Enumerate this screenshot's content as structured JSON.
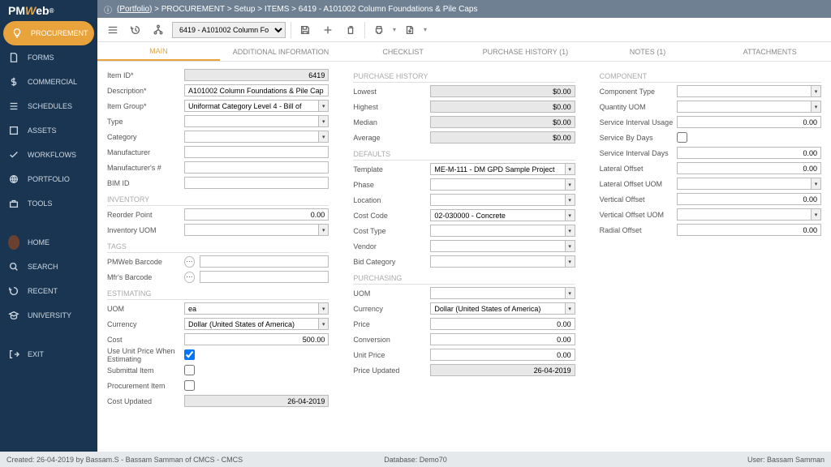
{
  "logo": {
    "p1": "PM",
    "p2": "W",
    "p3": "eb"
  },
  "breadcrumb": [
    "(Portfolio)",
    "PROCUREMENT",
    "Setup",
    "ITEMS",
    "6419 - A101002 Column Foundations & Pile Caps"
  ],
  "dropdown": "6419 - A101002 Column Foundations",
  "nav": [
    {
      "label": "PROCUREMENT",
      "icon": "bulb",
      "active": true
    },
    {
      "label": "FORMS",
      "icon": "doc"
    },
    {
      "label": "COMMERCIAL",
      "icon": "dollar"
    },
    {
      "label": "SCHEDULES",
      "icon": "list"
    },
    {
      "label": "ASSETS",
      "icon": "box"
    },
    {
      "label": "WORKFLOWS",
      "icon": "check"
    },
    {
      "label": "PORTFOLIO",
      "icon": "globe"
    },
    {
      "label": "TOOLS",
      "icon": "case"
    }
  ],
  "nav2": [
    {
      "label": "HOME",
      "icon": "avatar"
    },
    {
      "label": "SEARCH",
      "icon": "search"
    },
    {
      "label": "RECENT",
      "icon": "recent"
    },
    {
      "label": "UNIVERSITY",
      "icon": "grad"
    }
  ],
  "nav3": [
    {
      "label": "EXIT",
      "icon": "exit"
    }
  ],
  "tabs": [
    "MAIN",
    "ADDITIONAL INFORMATION",
    "CHECKLIST",
    "PURCHASE HISTORY (1)",
    "NOTES (1)",
    "ATTACHMENTS"
  ],
  "col1": {
    "item_id_lbl": "Item ID*",
    "item_id": "6419",
    "desc_lbl": "Description*",
    "desc": "A101002 Column Foundations & Pile Cap",
    "group_lbl": "Item Group*",
    "group": "Uniformat Category Level 4 - Bill of",
    "type_lbl": "Type",
    "type": "",
    "cat_lbl": "Category",
    "cat": "",
    "mfr_lbl": "Manufacturer",
    "mfr": "",
    "mfrno_lbl": "Manufacturer's #",
    "mfrno": "",
    "bim_lbl": "BIM ID",
    "bim": "",
    "inv_sect": "INVENTORY",
    "reorder_lbl": "Reorder Point",
    "reorder": "0.00",
    "invuom_lbl": "Inventory UOM",
    "invuom": "",
    "tags_sect": "TAGS",
    "pmbc_lbl": "PMWeb Barcode",
    "pmbc": "",
    "mfrbc_lbl": "Mfr's Barcode",
    "mfrbc": "",
    "est_sect": "ESTIMATING",
    "uom_lbl": "UOM",
    "uom": "ea",
    "curr_lbl": "Currency",
    "curr": "Dollar (United States of America)",
    "cost_lbl": "Cost",
    "cost": "500.00",
    "useup_lbl": "Use Unit Price When Estimating",
    "subitem_lbl": "Submittal Item",
    "procitem_lbl": "Procurement Item",
    "costup_lbl": "Cost Updated",
    "costup": "26-04-2019"
  },
  "col2": {
    "ph_sect": "PURCHASE HISTORY",
    "lowest_lbl": "Lowest",
    "lowest": "$0.00",
    "highest_lbl": "Highest",
    "highest": "$0.00",
    "median_lbl": "Median",
    "median": "$0.00",
    "avg_lbl": "Average",
    "avg": "$0.00",
    "def_sect": "DEFAULTS",
    "tmpl_lbl": "Template",
    "tmpl": "ME-M-111 - DM GPD Sample Project",
    "phase_lbl": "Phase",
    "phase": "",
    "loc_lbl": "Location",
    "loc": "",
    "cc_lbl": "Cost Code",
    "cc": "02-030000 - Concrete",
    "ct_lbl": "Cost Type",
    "ct": "",
    "vendor_lbl": "Vendor",
    "vendor": "",
    "bidcat_lbl": "Bid Category",
    "bidcat": "",
    "pur_sect": "PURCHASING",
    "puom_lbl": "UOM",
    "puom": "",
    "pcurr_lbl": "Currency",
    "pcurr": "Dollar (United States of America)",
    "price_lbl": "Price",
    "price": "0.00",
    "conv_lbl": "Conversion",
    "conv": "0.00",
    "up_lbl": "Unit Price",
    "up": "0.00",
    "pu_lbl": "Price Updated",
    "pu": "26-04-2019"
  },
  "col3": {
    "comp_sect": "COMPONENT",
    "ctype_lbl": "Component Type",
    "ctype": "",
    "quom_lbl": "Quantity UOM",
    "quom": "",
    "siu_lbl": "Service Interval Usage",
    "siu": "0.00",
    "sbd_lbl": "Service By Days",
    "sid_lbl": "Service Interval Days",
    "sid": "0.00",
    "lat_lbl": "Lateral Offset",
    "lat": "0.00",
    "latuom_lbl": "Lateral Offset UOM",
    "latuom": "",
    "vert_lbl": "Vertical Offset",
    "vert": "0.00",
    "vertuom_lbl": "Vertical Offset UOM",
    "vertuom": "",
    "rad_lbl": "Radial Offset",
    "rad": "0.00"
  },
  "status": {
    "left": "Created:  26-04-2019 by Bassam.S - Bassam Samman of CMCS - CMCS",
    "mid": "Database:   Demo70",
    "right": "User:   Bassam Samman"
  }
}
